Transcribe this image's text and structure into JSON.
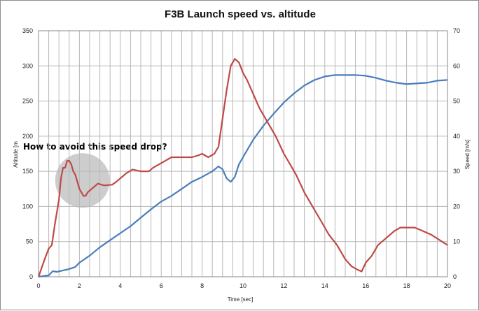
{
  "chart_data": {
    "type": "line",
    "title": "F3B Launch speed vs. altitude",
    "xlabel": "Time [sec]",
    "ylabel_left": "Altitude [m",
    "ylabel_right": "Speed [m/s]",
    "xlim": [
      0,
      20
    ],
    "ylim_left": [
      0,
      350
    ],
    "ylim_right": [
      0,
      70
    ],
    "x_ticks": [
      "0",
      "2",
      "4",
      "6",
      "8",
      "10",
      "12",
      "14",
      "16",
      "18",
      "20"
    ],
    "y_left_ticks": [
      "0",
      "50",
      "100",
      "150",
      "200",
      "250",
      "300",
      "350"
    ],
    "y_right_ticks": [
      "0",
      "10",
      "20",
      "30",
      "40",
      "50",
      "60",
      "70"
    ],
    "grid": true,
    "annotation": "How to avoid this speed drop?",
    "series": [
      {
        "axis": "left",
        "color": "#4a7ebb",
        "points": [
          [
            0,
            0
          ],
          [
            0.5,
            2
          ],
          [
            0.7,
            8
          ],
          [
            0.9,
            7
          ],
          [
            1.2,
            9
          ],
          [
            1.5,
            11
          ],
          [
            1.8,
            14
          ],
          [
            2.0,
            20
          ],
          [
            2.5,
            30
          ],
          [
            3.0,
            42
          ],
          [
            3.5,
            52
          ],
          [
            4.0,
            62
          ],
          [
            4.5,
            72
          ],
          [
            5.0,
            84
          ],
          [
            5.5,
            96
          ],
          [
            6.0,
            107
          ],
          [
            6.5,
            115
          ],
          [
            7.0,
            125
          ],
          [
            7.5,
            135
          ],
          [
            8.0,
            142
          ],
          [
            8.5,
            150
          ],
          [
            8.8,
            157
          ],
          [
            9.0,
            153
          ],
          [
            9.2,
            140
          ],
          [
            9.4,
            135
          ],
          [
            9.6,
            142
          ],
          [
            9.8,
            160
          ],
          [
            10.0,
            170
          ],
          [
            10.5,
            195
          ],
          [
            11.0,
            215
          ],
          [
            11.5,
            232
          ],
          [
            12.0,
            248
          ],
          [
            12.5,
            261
          ],
          [
            13.0,
            272
          ],
          [
            13.5,
            280
          ],
          [
            14.0,
            285
          ],
          [
            14.5,
            287
          ],
          [
            15.0,
            287
          ],
          [
            15.5,
            287
          ],
          [
            16.0,
            286
          ],
          [
            16.5,
            283
          ],
          [
            17.0,
            279
          ],
          [
            17.5,
            276
          ],
          [
            18.0,
            274
          ],
          [
            18.5,
            275
          ],
          [
            19.0,
            276
          ],
          [
            19.5,
            279
          ],
          [
            20.0,
            280
          ]
        ]
      },
      {
        "axis": "right",
        "color": "#be4b48",
        "points": [
          [
            0,
            0
          ],
          [
            0.3,
            5
          ],
          [
            0.5,
            8
          ],
          [
            0.65,
            9
          ],
          [
            0.8,
            15
          ],
          [
            1.0,
            22
          ],
          [
            1.1,
            28
          ],
          [
            1.2,
            31
          ],
          [
            1.3,
            31
          ],
          [
            1.4,
            33
          ],
          [
            1.5,
            33
          ],
          [
            1.6,
            32
          ],
          [
            1.7,
            30
          ],
          [
            1.8,
            29
          ],
          [
            1.9,
            27
          ],
          [
            2.0,
            25
          ],
          [
            2.1,
            24
          ],
          [
            2.2,
            23
          ],
          [
            2.3,
            23
          ],
          [
            2.4,
            24
          ],
          [
            2.5,
            24.5
          ],
          [
            2.7,
            25.5
          ],
          [
            2.9,
            26.5
          ],
          [
            3.2,
            26
          ],
          [
            3.6,
            26.2
          ],
          [
            3.8,
            27
          ],
          [
            4.0,
            28
          ],
          [
            4.3,
            29.5
          ],
          [
            4.6,
            30.5
          ],
          [
            5.0,
            30
          ],
          [
            5.4,
            30
          ],
          [
            5.6,
            31
          ],
          [
            5.9,
            32
          ],
          [
            6.2,
            33
          ],
          [
            6.5,
            34
          ],
          [
            7.0,
            34
          ],
          [
            7.5,
            34
          ],
          [
            7.8,
            34.5
          ],
          [
            8.0,
            35
          ],
          [
            8.3,
            34
          ],
          [
            8.6,
            35
          ],
          [
            8.8,
            37
          ],
          [
            9.0,
            45
          ],
          [
            9.2,
            53
          ],
          [
            9.4,
            60
          ],
          [
            9.5,
            61
          ],
          [
            9.6,
            62
          ],
          [
            9.8,
            61
          ],
          [
            10.0,
            58
          ],
          [
            10.2,
            56
          ],
          [
            10.5,
            52
          ],
          [
            10.8,
            48
          ],
          [
            11.2,
            44
          ],
          [
            11.6,
            40
          ],
          [
            12.0,
            35
          ],
          [
            12.3,
            32
          ],
          [
            12.6,
            29
          ],
          [
            13.0,
            24
          ],
          [
            13.4,
            20
          ],
          [
            13.8,
            16
          ],
          [
            14.2,
            12
          ],
          [
            14.6,
            9
          ],
          [
            15.0,
            5
          ],
          [
            15.3,
            3
          ],
          [
            15.6,
            2
          ],
          [
            15.8,
            1.5
          ],
          [
            16.0,
            4
          ],
          [
            16.3,
            6
          ],
          [
            16.6,
            9
          ],
          [
            17.0,
            11
          ],
          [
            17.4,
            13
          ],
          [
            17.7,
            14
          ],
          [
            18.0,
            14
          ],
          [
            18.4,
            14
          ],
          [
            18.8,
            13
          ],
          [
            19.2,
            12
          ],
          [
            19.6,
            10.5
          ],
          [
            20.0,
            9
          ]
        ]
      }
    ]
  }
}
